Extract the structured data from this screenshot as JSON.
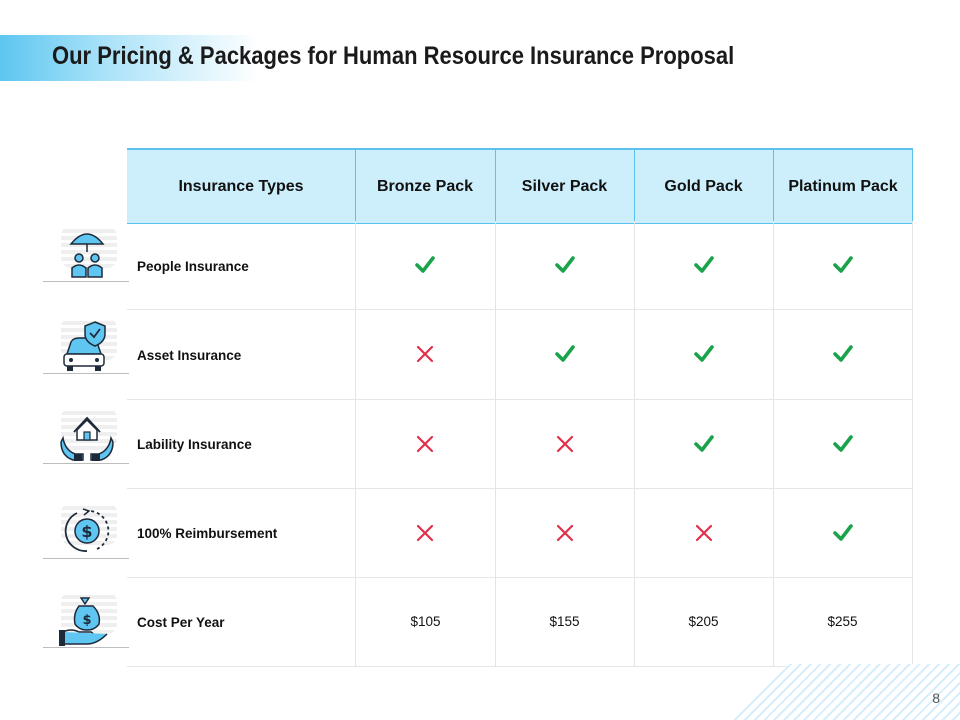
{
  "slide": {
    "title": "Our Pricing & Packages for Human Resource Insurance Proposal",
    "page_number": "8"
  },
  "table": {
    "headers": [
      "Insurance Types",
      "Bronze Pack",
      "Silver Pack",
      "Gold Pack",
      "Platinum Pack"
    ],
    "rows": [
      {
        "label": "People Insurance",
        "icon": "umbrella-people-icon",
        "values": [
          "check",
          "check",
          "check",
          "check"
        ]
      },
      {
        "label": "Asset Insurance",
        "icon": "car-shield-icon",
        "values": [
          "cross",
          "check",
          "check",
          "check"
        ]
      },
      {
        "label": "Lability Insurance",
        "icon": "house-hands-icon",
        "values": [
          "cross",
          "cross",
          "check",
          "check"
        ]
      },
      {
        "label": "100% Reimbursement",
        "icon": "dollar-refresh-icon",
        "values": [
          "cross",
          "cross",
          "cross",
          "check"
        ]
      }
    ],
    "cost_row": {
      "label": "Cost Per Year",
      "icon": "money-bag-hand-icon",
      "prices": [
        "$105",
        "$155",
        "$205",
        "$255"
      ]
    }
  },
  "colors": {
    "accent": "#5bc2ef",
    "header_fill": "#cdeffc",
    "check": "#1aa34a",
    "cross": "#e0304a",
    "icon_stroke": "#1e2a3a",
    "icon_fill": "#5ec6f0"
  }
}
